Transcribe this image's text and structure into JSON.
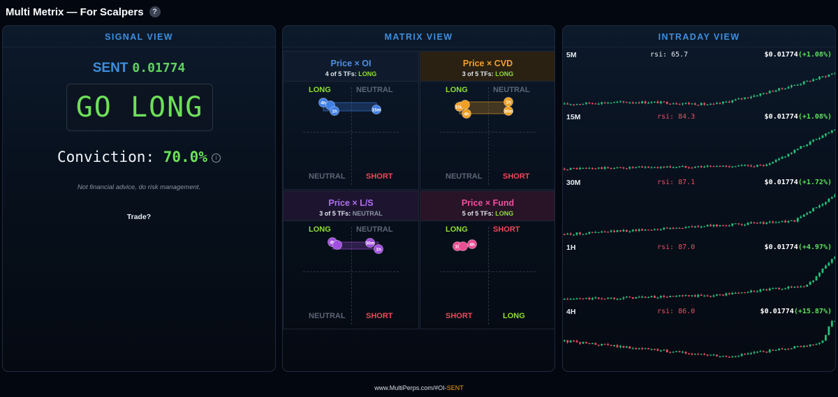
{
  "header": {
    "title": "Multi Metrix — For Scalpers",
    "help": "?"
  },
  "signal": {
    "panel_title": "SIGNAL VIEW",
    "symbol": "SENT",
    "price": "0.01774",
    "signal_text": "GO LONG",
    "conviction_label": "Conviction:",
    "conviction_value": "70.0%",
    "info": "i",
    "disclaimer": "Not financial advice, do risk management.",
    "trade_label": "Trade?"
  },
  "matrix": {
    "panel_title": "MATRIX VIEW",
    "quadrants": [
      {
        "title": "Price × OI",
        "prefix": "4 of 5 TFs:",
        "verdict": "LONG",
        "verdict_color": "#8fdf34",
        "title_color": "#4f8fe8",
        "labels": [
          "LONG",
          "NEUTRAL",
          "NEUTRAL",
          "SHORT"
        ],
        "color": "#3f7fe6",
        "bubbles": [
          {
            "tf": "4h"
          },
          {
            "tf": ""
          },
          {
            "tf": "1h"
          },
          {
            "tf": "15m"
          }
        ]
      },
      {
        "title": "Price × CVD",
        "prefix": "3 of 5 TFs:",
        "verdict": "LONG",
        "verdict_color": "#8fdf34",
        "title_color": "#f0a030",
        "labels": [
          "LONG",
          "NEUTRAL",
          "NEUTRAL",
          "SHORT"
        ],
        "color": "#f0a020",
        "bubbles": [
          {
            "tf": "15m"
          },
          {
            "tf": ""
          },
          {
            "tf": "4h"
          },
          {
            "tf": "1h"
          },
          {
            "tf": "30m"
          }
        ]
      },
      {
        "title": "Price × L/S",
        "prefix": "3 of 5 TFs:",
        "verdict": "NEUTRAL",
        "verdict_color": "#8893a3",
        "title_color": "#b26ef0",
        "labels": [
          "LONG",
          "NEUTRAL",
          "NEUTRAL",
          "SHORT"
        ],
        "color": "#a24fe0",
        "bubbles": [
          {
            "tf": "4h"
          },
          {
            "tf": ""
          },
          {
            "tf": "30m"
          },
          {
            "tf": "1h"
          }
        ]
      },
      {
        "title": "Price × Fund",
        "prefix": "5 of 5 TFs:",
        "verdict": "LONG",
        "verdict_color": "#8fdf34",
        "title_color": "#f050a0",
        "labels": [
          "LONG",
          "SHORT",
          "SHORT",
          "LONG"
        ],
        "color": "#ec4d94",
        "bubbles": [
          {
            "tf": "1k"
          },
          {
            "tf": ""
          },
          {
            "tf": "4h"
          }
        ]
      }
    ]
  },
  "intraday": {
    "panel_title": "INTRADAY VIEW",
    "up_color": "#26c07a",
    "down_color": "#ef4e62",
    "rows": [
      {
        "tf": "5M",
        "rsi": "rsi: 65.7",
        "rsi_color": "#e6ebf2",
        "price": "$0.01774",
        "change": "(+1.08%)"
      },
      {
        "tf": "15M",
        "rsi": "rsi: 84.3",
        "rsi_color": "#ef4e62",
        "price": "$0.01774",
        "change": "(+1.08%)"
      },
      {
        "tf": "30M",
        "rsi": "rsi: 87.1",
        "rsi_color": "#ef4e62",
        "price": "$0.01774",
        "change": "(+1.72%)"
      },
      {
        "tf": "1H",
        "rsi": "rsi: 87.0",
        "rsi_color": "#ef4e62",
        "price": "$0.01774",
        "change": "(+4.97%)"
      },
      {
        "tf": "4H",
        "rsi": "rsi: 86.0",
        "rsi_color": "#ef4e62",
        "price": "$0.01774",
        "change": "(+15.87%)"
      }
    ]
  },
  "footer": {
    "url_prefix": "www.MultiPerps.com/#OI-",
    "url_symbol": "SENT"
  }
}
